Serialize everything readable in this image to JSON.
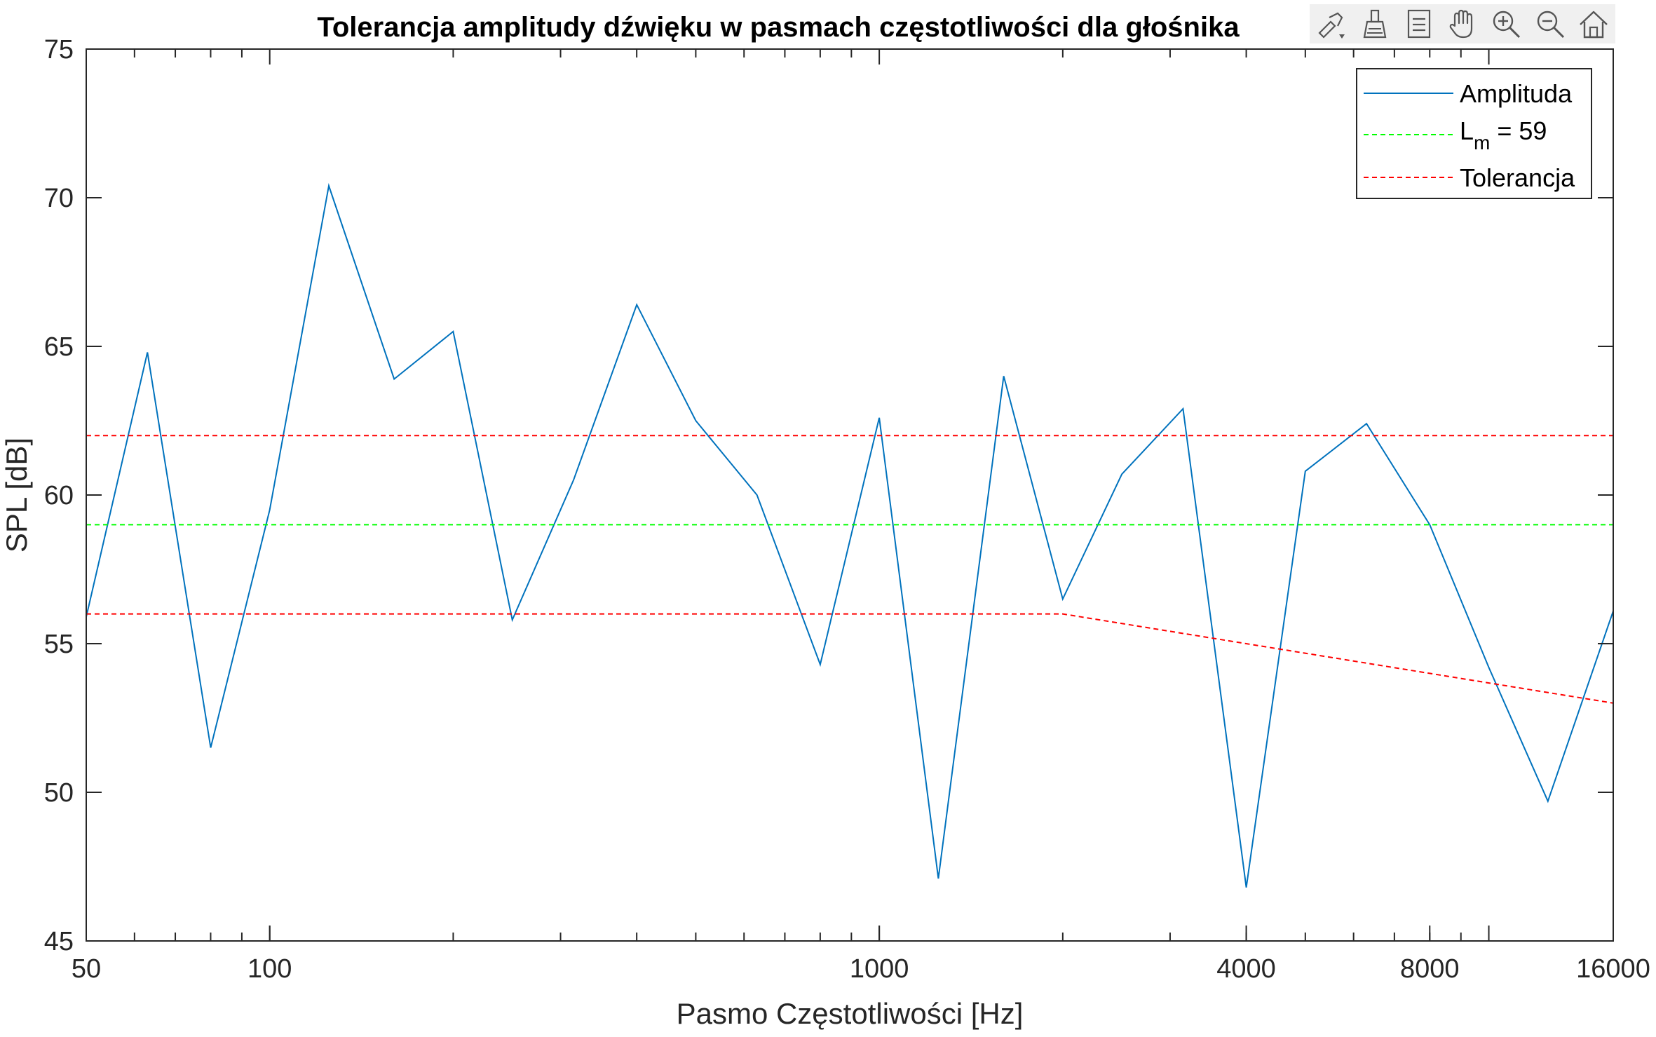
{
  "chart_data": {
    "type": "line",
    "title": "Tolerancja amplitudy dźwięku w pasmach częstotliwości dla głośnika",
    "xlabel": "Pasmo Częstotliwości [Hz]",
    "ylabel": "SPL [dB]",
    "xscale": "log",
    "xlim": [
      50,
      16000
    ],
    "ylim": [
      45,
      75
    ],
    "xticks": [
      50,
      100,
      1000,
      4000,
      8000,
      16000
    ],
    "xtick_labels": [
      "50",
      "100",
      "1000",
      "4000",
      "8000",
      "16000"
    ],
    "yticks": [
      45,
      50,
      55,
      60,
      65,
      70,
      75
    ],
    "ytick_labels": [
      "45",
      "50",
      "55",
      "60",
      "65",
      "70",
      "75"
    ],
    "grid": false,
    "legend_position": "top-right",
    "legend": {
      "amplitude": "Amplituda",
      "lm_base": "L",
      "lm_sub": "m",
      "lm_rest": " = 59",
      "tolerance": "Tolerancja"
    },
    "series": [
      {
        "name": "Amplituda",
        "color": "#0072BD",
        "style": "solid",
        "x": [
          50,
          63,
          80,
          100,
          125,
          160,
          200,
          250,
          315,
          400,
          500,
          630,
          800,
          1000,
          1250,
          1600,
          2000,
          2500,
          3150,
          4000,
          5000,
          6300,
          8000,
          10000,
          12500,
          16000
        ],
        "y": [
          55.9,
          64.8,
          51.5,
          59.5,
          70.4,
          63.9,
          65.5,
          55.8,
          60.5,
          66.4,
          62.5,
          60.0,
          54.3,
          62.6,
          47.1,
          64.0,
          56.5,
          60.7,
          62.9,
          46.8,
          60.8,
          62.4,
          59.0,
          54.2,
          49.7,
          56.1
        ]
      },
      {
        "name": "Lm = 59",
        "color": "#00FF00",
        "style": "dashed",
        "x": [
          50,
          16000
        ],
        "y": [
          59,
          59
        ]
      },
      {
        "name": "Tolerancja",
        "color": "#FF0000",
        "style": "dashed",
        "x": [
          50,
          16000
        ],
        "y": [
          62,
          62
        ]
      },
      {
        "name": "Tolerancja",
        "color": "#FF0000",
        "style": "dashed",
        "x": [
          50,
          2000,
          16000
        ],
        "y": [
          56,
          56,
          53
        ]
      }
    ]
  },
  "toolbar": {
    "icons": [
      "brush-export-icon",
      "datatip-brush-icon",
      "legend-insert-icon",
      "pan-hand-icon",
      "zoom-in-icon",
      "zoom-out-icon",
      "home-restore-icon"
    ]
  }
}
